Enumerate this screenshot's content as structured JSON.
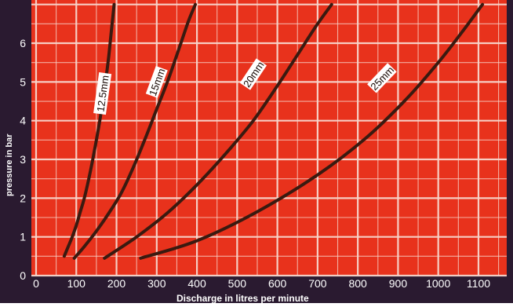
{
  "chart_data": {
    "type": "line",
    "title": "",
    "xlabel": "Discharge in litres per minute",
    "ylabel": "pressure in bar",
    "xlim": [
      0,
      1150
    ],
    "ylim": [
      0,
      7
    ],
    "x_ticks": [
      0,
      100,
      200,
      300,
      400,
      500,
      600,
      700,
      800,
      900,
      1000,
      1100
    ],
    "x_tick_labels": [
      "0",
      "100",
      "200",
      "300",
      "400",
      "500",
      "600",
      "700",
      "800",
      "900",
      "1000",
      "1100"
    ],
    "y_ticks": [
      0,
      1,
      2,
      3,
      4,
      5,
      6
    ],
    "y_tick_labels": [
      "0",
      "1",
      "2",
      "3",
      "4",
      "5",
      "6"
    ],
    "grid": true,
    "legend": "none (series labelled on curves)",
    "colors": {
      "plot_background": "#e8321c",
      "grid": "#f7d6cc",
      "curve": "#3a1a10",
      "curve_label_bg": "#ffffff",
      "axis_text": "#ffffff",
      "frame": "#2a1a30"
    },
    "series": [
      {
        "name": "12.5mm",
        "x": [
          70,
          80,
          90,
          100,
          110,
          120,
          130,
          140,
          150,
          160,
          170,
          180,
          188,
          194
        ],
        "y": [
          0.5,
          0.75,
          1.0,
          1.3,
          1.65,
          2.0,
          2.45,
          2.95,
          3.5,
          4.1,
          4.8,
          5.6,
          6.4,
          7.0
        ],
        "label_at": [
          165,
          4.7
        ]
      },
      {
        "name": "15mm",
        "x": [
          95,
          120,
          150,
          180,
          210,
          240,
          270,
          300,
          330,
          360,
          380,
          396
        ],
        "y": [
          0.45,
          0.75,
          1.15,
          1.6,
          2.1,
          2.75,
          3.5,
          4.3,
          5.1,
          6.0,
          6.6,
          7.0
        ],
        "label_at": [
          300,
          5.0
        ]
      },
      {
        "name": "20mm",
        "x": [
          170,
          250,
          330,
          410,
          480,
          540,
          600,
          650,
          700,
          735
        ],
        "y": [
          0.45,
          1.0,
          1.65,
          2.45,
          3.25,
          4.0,
          4.9,
          5.7,
          6.5,
          7.0
        ],
        "label_at": [
          540,
          5.2
        ]
      },
      {
        "name": "25mm",
        "x": [
          260,
          400,
          550,
          700,
          820,
          920,
          1000,
          1060,
          1110
        ],
        "y": [
          0.45,
          0.9,
          1.65,
          2.6,
          3.55,
          4.55,
          5.5,
          6.3,
          7.0
        ],
        "label_at": [
          860,
          5.1
        ]
      }
    ]
  }
}
